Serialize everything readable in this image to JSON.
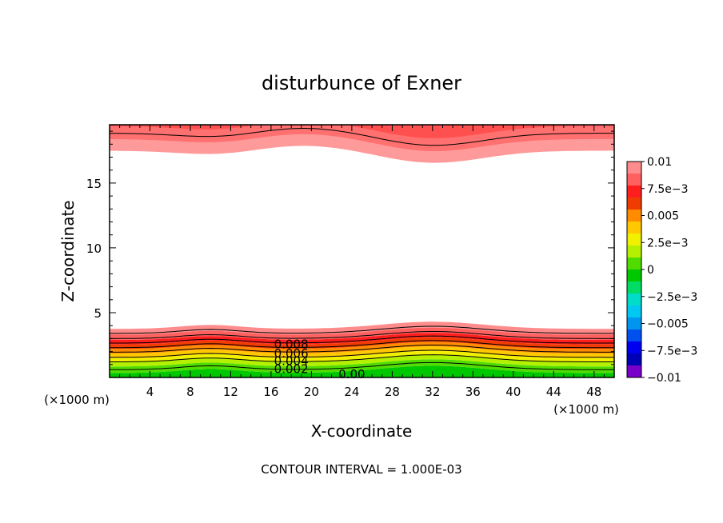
{
  "chart_data": {
    "type": "contour",
    "title": "disturbunce of Exner",
    "xlabel": "X-coordinate",
    "ylabel": "Z-coordinate",
    "x_unit_left": "(×1000 m)",
    "x_unit_right": "(×1000 m)",
    "footer": "CONTOUR INTERVAL = 1.000E-03",
    "xlim": [
      0,
      50
    ],
    "ylim": [
      0,
      19.5
    ],
    "x_ticks": [
      4,
      8,
      12,
      16,
      20,
      24,
      28,
      32,
      36,
      40,
      44,
      48
    ],
    "x_tick_labels": [
      "4",
      "8",
      "12",
      "16",
      "20",
      "24",
      "28",
      "32",
      "36",
      "40",
      "44",
      "48"
    ],
    "y_ticks": [
      5,
      10,
      15
    ],
    "y_tick_labels": [
      "5",
      "10",
      "15"
    ],
    "contour_interval": 0.001,
    "contour_labels": [
      {
        "text": "0.008",
        "x": 18,
        "y": 2.5
      },
      {
        "text": "0.006",
        "x": 18,
        "y": 1.8
      },
      {
        "text": "0.004",
        "x": 18,
        "y": 1.2
      },
      {
        "text": "0.002",
        "x": 18,
        "y": 0.6
      },
      {
        "text": "0.00",
        "x": 24,
        "y": 0.2
      }
    ],
    "colorbar": {
      "labels": [
        "0.01",
        "7.5e-3",
        "0.005",
        "2.5e-3",
        "0",
        "-2.5e-3",
        "-0.005",
        "-7.5e-3",
        "-0.01"
      ],
      "colors": [
        "#ff8c8c",
        "#ff6060",
        "#ff1e1e",
        "#f03c00",
        "#ff8c00",
        "#ffc800",
        "#f0f000",
        "#b4f000",
        "#50dc00",
        "#00c800",
        "#00dc64",
        "#00dcc8",
        "#00c8f0",
        "#0096f0",
        "#0050f0",
        "#0000f0",
        "#0000b4",
        "#7800c8"
      ]
    }
  }
}
